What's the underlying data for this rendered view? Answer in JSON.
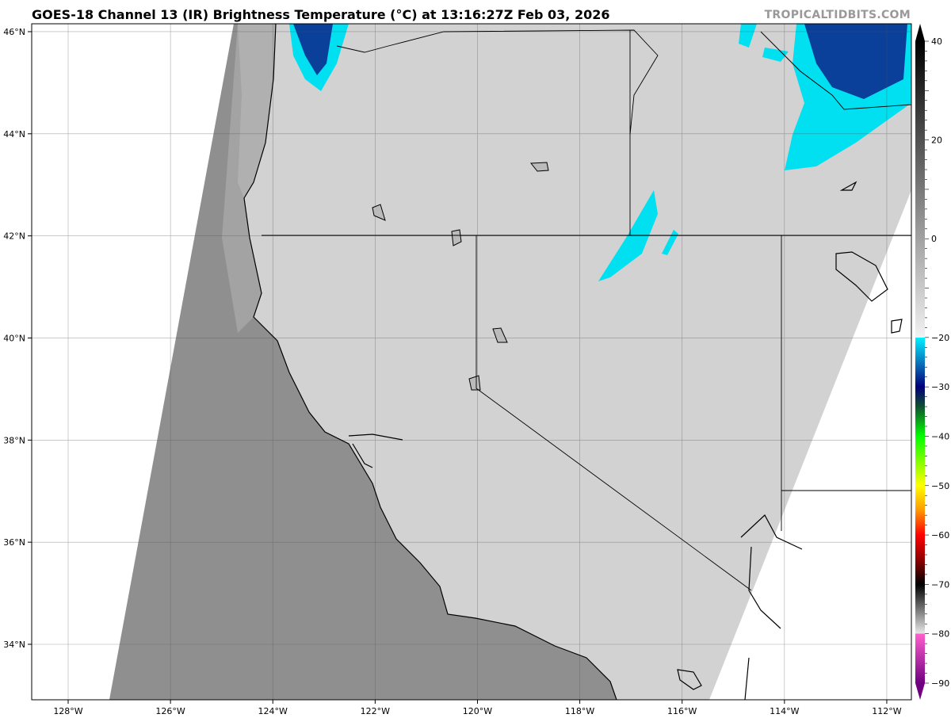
{
  "title": "GOES-18 Channel 13 (IR) Brightness Temperature (°C) at 13:16:27Z Feb 03, 2026",
  "watermark": "TROPICALTIDBITS.COM",
  "map": {
    "lon_labels": [
      "128°W",
      "126°W",
      "124°W",
      "122°W",
      "120°W",
      "118°W",
      "116°W",
      "114°W",
      "112°W"
    ],
    "lat_labels": [
      "34°N",
      "36°N",
      "38°N",
      "40°N",
      "42°N",
      "44°N",
      "46°N"
    ],
    "colors": {
      "ocean": "#8f8f8f",
      "land": "#cfcfcf",
      "cold_cloud": "#00e5f0",
      "very_cold_cloud": "#0a3f9a"
    }
  },
  "colorbar": {
    "tick_labels": [
      "40",
      "20",
      "0",
      "−20",
      "−30",
      "−40",
      "−50",
      "−60",
      "−70",
      "−80",
      "−90"
    ],
    "tick_values": [
      40,
      20,
      0,
      -20,
      -30,
      -40,
      -50,
      -60,
      -70,
      -80,
      -90
    ],
    "range": [
      -90,
      40
    ],
    "stops": [
      {
        "v": 40,
        "c": "#000000"
      },
      {
        "v": -20,
        "c": "#f2f2f2"
      },
      {
        "v": -20.01,
        "c": "#00f0ff"
      },
      {
        "v": -26,
        "c": "#0a60b0"
      },
      {
        "v": -30,
        "c": "#00007a"
      },
      {
        "v": -34,
        "c": "#105030"
      },
      {
        "v": -40,
        "c": "#00ff00"
      },
      {
        "v": -50,
        "c": "#ffff00"
      },
      {
        "v": -55,
        "c": "#ff9900"
      },
      {
        "v": -60,
        "c": "#ff0000"
      },
      {
        "v": -65,
        "c": "#900000"
      },
      {
        "v": -70,
        "c": "#000000"
      },
      {
        "v": -79.99,
        "c": "#e8e8e8"
      },
      {
        "v": -80,
        "c": "#ff60cc"
      },
      {
        "v": -90,
        "c": "#700080"
      }
    ]
  }
}
